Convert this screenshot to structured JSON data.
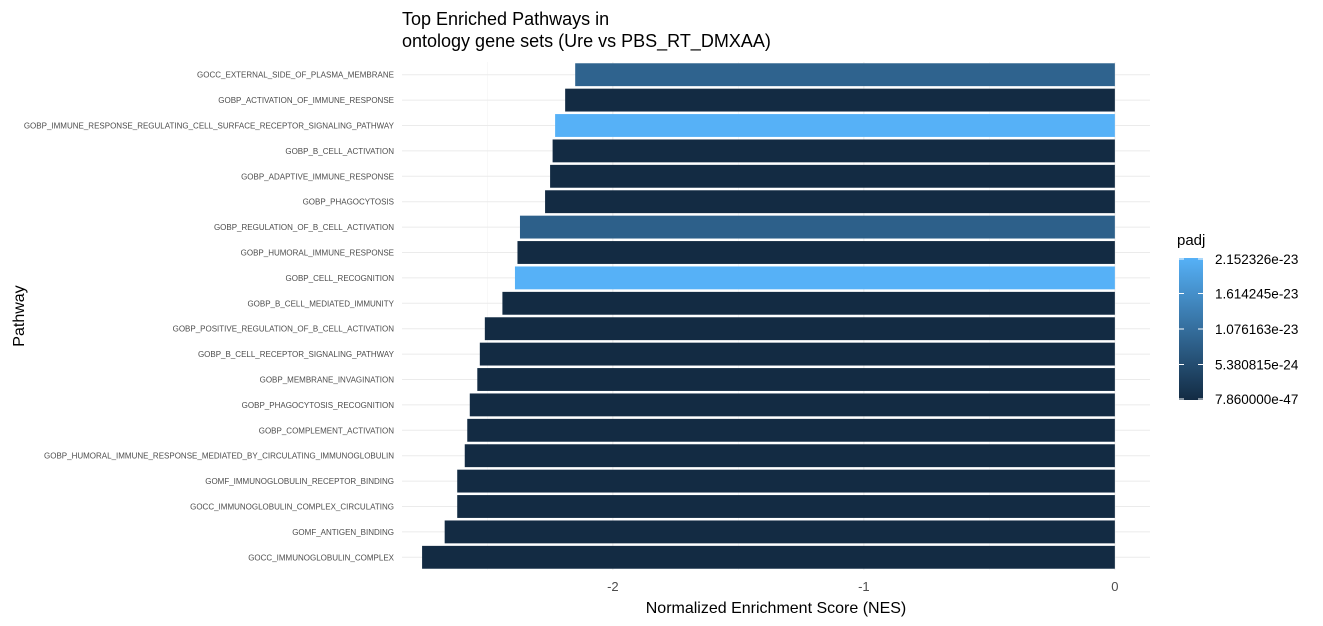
{
  "chart_data": {
    "type": "bar",
    "orientation": "horizontal",
    "title": "Top Enriched Pathways in",
    "subtitle": "ontology gene sets (Ure vs PBS_RT_DMXAA)",
    "xlabel": "Normalized Enrichment Score (NES)",
    "ylabel": "Pathway",
    "xlim": [
      -2.84,
      0.14
    ],
    "xticks": [
      -2,
      -1,
      0
    ],
    "xtick_labels": [
      "-2",
      "-1",
      "0"
    ],
    "grid": true,
    "categories": [
      "GOCC_EXTERNAL_SIDE_OF_PLASMA_MEMBRANE",
      "GOBP_ACTIVATION_OF_IMMUNE_RESPONSE",
      "GOBP_IMMUNE_RESPONSE_REGULATING_CELL_SURFACE_RECEPTOR_SIGNALING_PATHWAY",
      "GOBP_B_CELL_ACTIVATION",
      "GOBP_ADAPTIVE_IMMUNE_RESPONSE",
      "GOBP_PHAGOCYTOSIS",
      "GOBP_REGULATION_OF_B_CELL_ACTIVATION",
      "GOBP_HUMORAL_IMMUNE_RESPONSE",
      "GOBP_CELL_RECOGNITION",
      "GOBP_B_CELL_MEDIATED_IMMUNITY",
      "GOBP_POSITIVE_REGULATION_OF_B_CELL_ACTIVATION",
      "GOBP_B_CELL_RECEPTOR_SIGNALING_PATHWAY",
      "GOBP_MEMBRANE_INVAGINATION",
      "GOBP_PHAGOCYTOSIS_RECOGNITION",
      "GOBP_COMPLEMENT_ACTIVATION",
      "GOBP_HUMORAL_IMMUNE_RESPONSE_MEDIATED_BY_CIRCULATING_IMMUNOGLOBULIN",
      "GOMF_IMMUNOGLOBULIN_RECEPTOR_BINDING",
      "GOCC_IMMUNOGLOBULIN_COMPLEX_CIRCULATING",
      "GOMF_ANTIGEN_BINDING",
      "GOCC_IMMUNOGLOBULIN_COMPLEX"
    ],
    "values": [
      -2.15,
      -2.19,
      -2.23,
      -2.24,
      -2.25,
      -2.27,
      -2.37,
      -2.38,
      -2.39,
      -2.44,
      -2.51,
      -2.53,
      -2.54,
      -2.57,
      -2.58,
      -2.59,
      -2.62,
      -2.62,
      -2.67,
      -2.76
    ],
    "padj": [
      9e-24,
      2e-30,
      2.152326e-23,
      1e-30,
      1e-30,
      1e-30,
      8.5e-24,
      1e-30,
      2.152326e-23,
      1e-30,
      1e-30,
      1e-30,
      1e-30,
      1e-30,
      1e-30,
      1e-30,
      1e-30,
      1e-30,
      1e-30,
      1e-30
    ],
    "legend": {
      "title": "padj",
      "position": "right",
      "min": 7.86e-47,
      "max": 2.152326e-23,
      "breaks": [
        7.86e-47,
        5.380815e-24,
        1.076163e-23,
        1.614245e-23,
        2.152326e-23
      ],
      "labels": [
        "7.860000e-47",
        "5.380815e-24",
        "1.076163e-23",
        "1.614245e-23",
        "2.152326e-23"
      ],
      "low_color": "#132B43",
      "high_color": "#56B1F7"
    }
  }
}
